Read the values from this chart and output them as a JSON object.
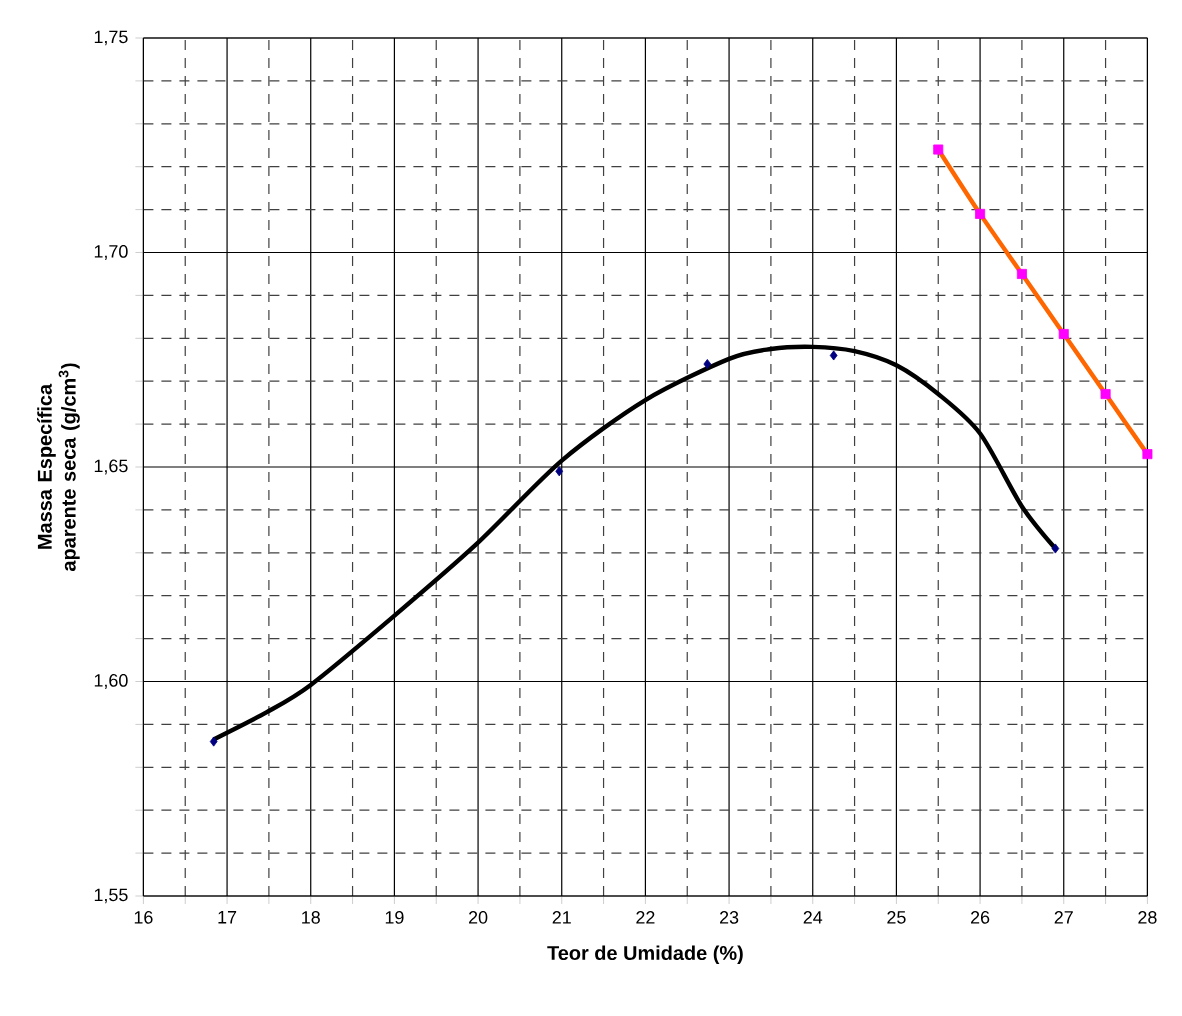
{
  "chart_data": {
    "type": "line",
    "xlabel": "Teor de Umidade (%)",
    "ylabel": "Massa Específica aparente seca (g/cm$^{3}$)",
    "xlim": [
      16,
      28
    ],
    "xticks": [
      16,
      17,
      18,
      19,
      20,
      21,
      22,
      23,
      24,
      25,
      26,
      27,
      28
    ],
    "ylim": [
      1.55,
      1.75
    ],
    "yticks": [
      {
        "value": 1.55,
        "label": "1,55"
      },
      {
        "value": 1.6,
        "label": "1,60"
      },
      {
        "value": 1.65,
        "label": "1,65"
      },
      {
        "value": 1.7,
        "label": "1,70"
      },
      {
        "value": 1.75,
        "label": "1,75"
      }
    ],
    "grid": true,
    "series": [
      {
        "color": "#000000",
        "marker": "none",
        "x": [
          16.84,
          17.47,
          18.0,
          18.98,
          19.98,
          21.0,
          22.0,
          23.0,
          23.5,
          24.0,
          24.5,
          25.0,
          25.5,
          26.0,
          26.5,
          26.9
        ],
        "values": [
          1.5865,
          1.5928,
          1.5992,
          1.615,
          1.632,
          1.6515,
          1.6656,
          1.6752,
          1.6775,
          1.678,
          1.677,
          1.6737,
          1.667,
          1.6578,
          1.6408,
          1.631
        ]
      },
      {
        "type": "scatter",
        "color": "#000080",
        "marker": "diamond",
        "x": [
          16.84,
          20.97,
          22.74,
          24.25,
          26.9
        ],
        "values": [
          1.586,
          1.649,
          1.674,
          1.676,
          1.631
        ]
      },
      {
        "color": "#ff6600",
        "marker": "none",
        "x": [
          25.5,
          26.0,
          26.5,
          27.0,
          27.5,
          28.0
        ],
        "values": [
          1.724,
          1.709,
          1.695,
          1.681,
          1.667,
          1.653
        ]
      },
      {
        "type": "scatter",
        "color": "#ff00ff",
        "marker": "square",
        "x": [
          25.5,
          26.0,
          26.5,
          27.0,
          27.5,
          28.0
        ],
        "values": [
          1.724,
          1.709,
          1.695,
          1.681,
          1.667,
          1.653
        ]
      }
    ]
  }
}
